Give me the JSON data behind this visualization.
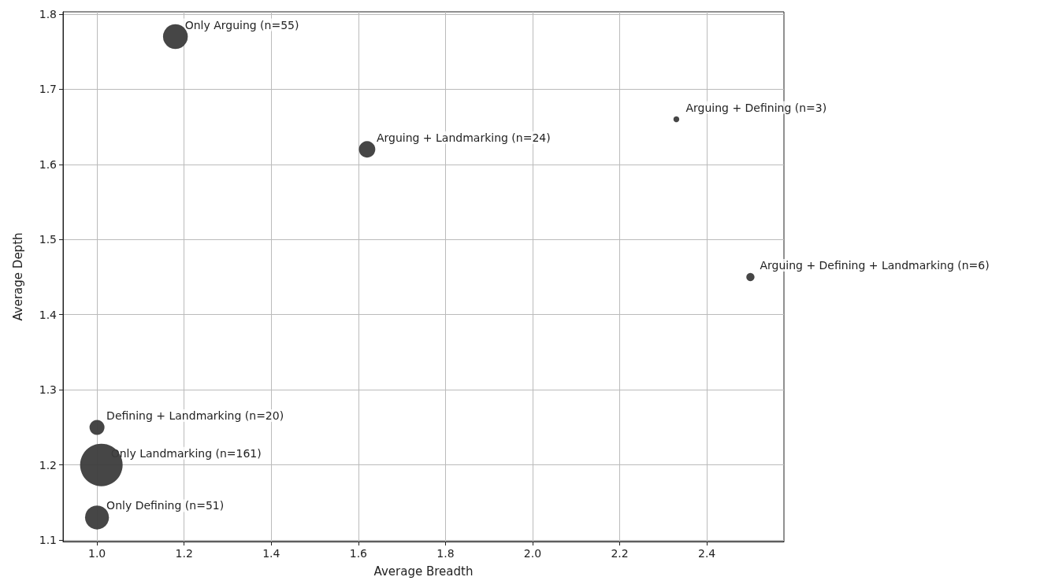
{
  "chart_data": {
    "type": "bubble",
    "xlabel": "Average Breadth",
    "ylabel": "Average Depth",
    "x": [
      1.18,
      1.62,
      2.33,
      2.5,
      1.0,
      1.01,
      1.0
    ],
    "values": [
      1.77,
      1.62,
      1.66,
      1.45,
      1.25,
      1.2,
      1.13
    ],
    "sizes": [
      0.34,
      0.15,
      0.019,
      0.037,
      0.124,
      1,
      0.317
    ],
    "color": "#3c3c3c",
    "xlim": [
      0.922,
      2.577
    ],
    "xticks": [
      {
        "value": 1,
        "label": "1.0"
      },
      1.2,
      1.4,
      1.6,
      1.8,
      {
        "value": 2,
        "label": "2.0"
      },
      2.2,
      2.4
    ],
    "ylim": [
      1.098,
      1.803
    ],
    "yticks": [
      1.1,
      1.2,
      1.3,
      1.4,
      1.5,
      1.6,
      1.7,
      1.8
    ],
    "grid": true,
    "annotations": [
      {
        "text": "Only Arguing (n=55)",
        "x": 1.18,
        "y": 1.77
      },
      {
        "text": "Arguing + Landmarking (n=24)",
        "x": 1.62,
        "y": 1.62
      },
      {
        "text": "Arguing + Defining (n=3)",
        "x": 2.33,
        "y": 1.66
      },
      {
        "text": "Arguing + Defining + Landmarking (n=6)",
        "x": 2.5,
        "y": 1.45
      },
      {
        "text": "Defining + Landmarking (n=20)",
        "x": 1.0,
        "y": 1.25
      },
      {
        "text": "Only Landmarking (n=161)",
        "x": 1.01,
        "y": 1.2
      },
      {
        "text": "Only Defining (n=51)",
        "x": 1.0,
        "y": 1.13
      }
    ]
  }
}
